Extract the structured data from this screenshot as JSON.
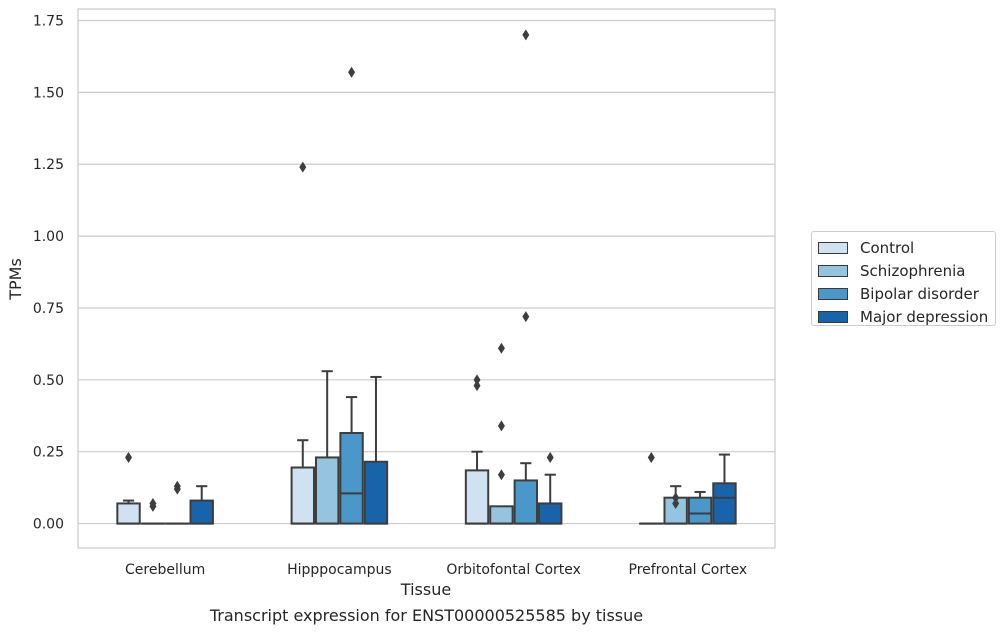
{
  "chart_data": {
    "type": "box",
    "ylabel": "TPMs",
    "xlabel": "Tissue",
    "caption": "Transcript expression for ENST00000525585 by tissue",
    "ylim": [
      -0.085,
      1.79
    ],
    "yticks": [
      0.0,
      0.25,
      0.5,
      0.75,
      1.0,
      1.25,
      1.5,
      1.75
    ],
    "ytick_labels": [
      "0.00",
      "0.25",
      "0.50",
      "0.75",
      "1.00",
      "1.25",
      "1.50",
      "1.75"
    ],
    "grid": "horizontal",
    "legend_position": "right",
    "categories": [
      "Cerebellum",
      "Hipppocampus",
      "Orbitofontal Cortex",
      "Prefrontal Cortex"
    ],
    "series": [
      {
        "name": "Control",
        "color": "#d0e1f2",
        "boxes": [
          {
            "q1": 0.0,
            "median": 0.0,
            "q3": 0.07,
            "whisker_low": 0.0,
            "whisker_high": 0.08,
            "outliers": [
              0.23
            ]
          },
          {
            "q1": 0.0,
            "median": 0.0,
            "q3": 0.195,
            "whisker_low": 0.0,
            "whisker_high": 0.29,
            "outliers": [
              1.24
            ]
          },
          {
            "q1": 0.0,
            "median": 0.0,
            "q3": 0.185,
            "whisker_low": 0.0,
            "whisker_high": 0.25,
            "outliers": [
              0.48,
              0.5
            ]
          },
          {
            "q1": 0.0,
            "median": 0.0,
            "q3": 0.0,
            "whisker_low": 0.0,
            "whisker_high": 0.0,
            "outliers": [
              0.23
            ]
          }
        ]
      },
      {
        "name": "Schizophrenia",
        "color": "#94c4df",
        "boxes": [
          {
            "q1": 0.0,
            "median": 0.0,
            "q3": 0.0,
            "whisker_low": 0.0,
            "whisker_high": 0.0,
            "outliers": [
              0.06,
              0.07
            ]
          },
          {
            "q1": 0.0,
            "median": 0.0,
            "q3": 0.23,
            "whisker_low": 0.0,
            "whisker_high": 0.53,
            "outliers": []
          },
          {
            "q1": 0.0,
            "median": 0.0,
            "q3": 0.06,
            "whisker_low": 0.0,
            "whisker_high": 0.06,
            "outliers": [
              0.17,
              0.34,
              0.61
            ]
          },
          {
            "q1": 0.0,
            "median": 0.0,
            "q3": 0.09,
            "whisker_low": 0.0,
            "whisker_high": 0.13,
            "outliers": [
              0.07,
              0.09
            ]
          }
        ]
      },
      {
        "name": "Bipolar disorder",
        "color": "#4a98c9",
        "boxes": [
          {
            "q1": 0.0,
            "median": 0.0,
            "q3": 0.0,
            "whisker_low": 0.0,
            "whisker_high": 0.0,
            "outliers": [
              0.12,
              0.13
            ]
          },
          {
            "q1": 0.0,
            "median": 0.105,
            "q3": 0.315,
            "whisker_low": 0.0,
            "whisker_high": 0.44,
            "outliers": [
              1.57
            ]
          },
          {
            "q1": 0.0,
            "median": 0.0,
            "q3": 0.15,
            "whisker_low": 0.0,
            "whisker_high": 0.21,
            "outliers": [
              0.72,
              1.7
            ]
          },
          {
            "q1": 0.0,
            "median": 0.035,
            "q3": 0.09,
            "whisker_low": 0.0,
            "whisker_high": 0.11,
            "outliers": []
          }
        ]
      },
      {
        "name": "Major depression",
        "color": "#1764ab",
        "boxes": [
          {
            "q1": 0.0,
            "median": 0.0,
            "q3": 0.08,
            "whisker_low": 0.0,
            "whisker_high": 0.13,
            "outliers": []
          },
          {
            "q1": 0.0,
            "median": 0.0,
            "q3": 0.215,
            "whisker_low": 0.0,
            "whisker_high": 0.51,
            "outliers": []
          },
          {
            "q1": 0.0,
            "median": 0.0,
            "q3": 0.07,
            "whisker_low": 0.0,
            "whisker_high": 0.17,
            "outliers": [
              0.23
            ]
          },
          {
            "q1": 0.0,
            "median": 0.09,
            "q3": 0.14,
            "whisker_low": 0.0,
            "whisker_high": 0.24,
            "outliers": []
          }
        ]
      }
    ]
  }
}
